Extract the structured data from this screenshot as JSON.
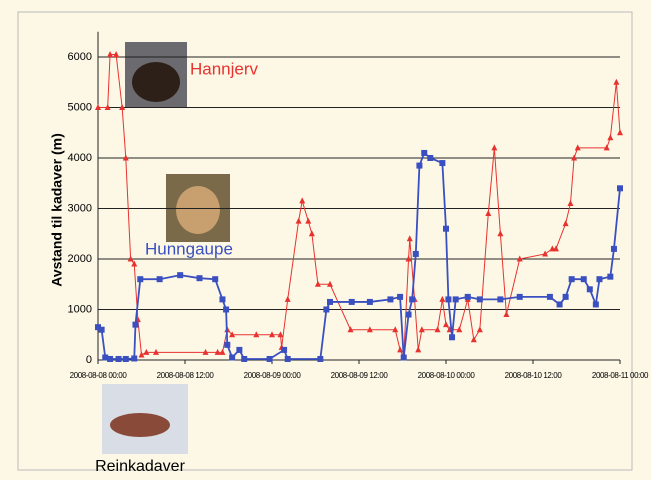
{
  "chart_data": {
    "type": "line",
    "ylabel": "Avstand til kadaver (m)",
    "xlim": [
      "2008-08-08 00:00",
      "2008-08-11 00:00"
    ],
    "xticks": [
      "2008-08-08 00:00",
      "2008-08-08 12:00",
      "2008-08-09 00:00",
      "2008-08-09 12:00",
      "2008-08-10 00:00",
      "2008-08-10 12:00",
      "2008-08-11 00:00"
    ],
    "ylim": [
      0,
      6500
    ],
    "yticks": [
      0,
      1000,
      2000,
      3000,
      4000,
      5000,
      6000
    ],
    "grid": true,
    "annotations": [
      "Reinkadaver"
    ],
    "series": [
      {
        "name": "Hannjerv",
        "color": "#e8322f",
        "marker": "triangle",
        "x": [
          "2008-08-08 00:00",
          "2008-08-08 01:20",
          "2008-08-08 01:40",
          "2008-08-08 02:30",
          "2008-08-08 03:20",
          "2008-08-08 03:50",
          "2008-08-08 04:30",
          "2008-08-08 05:00",
          "2008-08-08 05:30",
          "2008-08-08 06:00",
          "2008-08-08 06:40",
          "2008-08-08 08:00",
          "2008-08-08 14:50",
          "2008-08-08 16:30",
          "2008-08-08 17:10",
          "2008-08-08 17:50",
          "2008-08-08 18:30",
          "2008-08-08 21:50",
          "2008-08-09 00:00",
          "2008-08-09 01:10",
          "2008-08-09 01:20",
          "2008-08-09 02:10",
          "2008-08-09 03:40",
          "2008-08-09 04:10",
          "2008-08-09 05:00",
          "2008-08-09 05:30",
          "2008-08-09 06:20",
          "2008-08-09 08:00",
          "2008-08-09 10:50",
          "2008-08-09 13:30",
          "2008-08-09 17:00",
          "2008-08-09 17:40",
          "2008-08-09 18:10",
          "2008-08-09 18:50",
          "2008-08-09 19:00",
          "2008-08-09 19:40",
          "2008-08-09 20:10",
          "2008-08-09 20:40",
          "2008-08-09 22:50",
          "2008-08-09 23:30",
          "2008-08-10 00:00",
          "2008-08-10 00:30",
          "2008-08-10 01:50",
          "2008-08-10 03:00",
          "2008-08-10 03:50",
          "2008-08-10 04:40",
          "2008-08-10 05:50",
          "2008-08-10 06:40",
          "2008-08-10 07:30",
          "2008-08-10 08:20",
          "2008-08-10 10:10",
          "2008-08-10 13:40",
          "2008-08-10 14:40",
          "2008-08-10 15:10",
          "2008-08-10 16:30",
          "2008-08-10 17:10",
          "2008-08-10 17:40",
          "2008-08-10 18:10",
          "2008-08-10 22:10",
          "2008-08-10 22:40",
          "2008-08-10 23:30",
          "2008-08-11 00:00"
        ],
        "values": [
          5000,
          5000,
          6050,
          6050,
          5000,
          4000,
          2000,
          1900,
          800,
          100,
          150,
          150,
          150,
          150,
          150,
          600,
          500,
          500,
          500,
          500,
          250,
          1200,
          2750,
          3150,
          2750,
          2500,
          1500,
          1500,
          600,
          600,
          600,
          200,
          50,
          2000,
          2400,
          1200,
          200,
          600,
          600,
          1200,
          700,
          600,
          600,
          1200,
          400,
          600,
          2900,
          4200,
          2500,
          900,
          2000,
          2100,
          2200,
          2200,
          2700,
          3100,
          4000,
          4200,
          4200,
          4400,
          5500,
          4500
        ]
      },
      {
        "name": "Hunngaupe",
        "color": "#3a4fc0",
        "marker": "square",
        "x": [
          "2008-08-08 00:00",
          "2008-08-08 00:30",
          "2008-08-08 01:00",
          "2008-08-08 01:40",
          "2008-08-08 02:50",
          "2008-08-08 03:50",
          "2008-08-08 05:00",
          "2008-08-08 05:10",
          "2008-08-08 05:50",
          "2008-08-08 08:30",
          "2008-08-08 11:20",
          "2008-08-08 14:00",
          "2008-08-08 16:10",
          "2008-08-08 17:10",
          "2008-08-08 17:40",
          "2008-08-08 17:50",
          "2008-08-08 18:30",
          "2008-08-08 19:30",
          "2008-08-08 20:10",
          "2008-08-08 23:40",
          "2008-08-09 01:40",
          "2008-08-09 02:10",
          "2008-08-09 06:40",
          "2008-08-09 07:30",
          "2008-08-09 08:00",
          "2008-08-09 11:00",
          "2008-08-09 13:30",
          "2008-08-09 16:20",
          "2008-08-09 17:40",
          "2008-08-09 18:10",
          "2008-08-09 18:50",
          "2008-08-09 19:20",
          "2008-08-09 19:50",
          "2008-08-09 20:20",
          "2008-08-09 21:00",
          "2008-08-09 21:50",
          "2008-08-09 23:30",
          "2008-08-10 00:00",
          "2008-08-10 00:20",
          "2008-08-10 00:50",
          "2008-08-10 01:20",
          "2008-08-10 03:00",
          "2008-08-10 04:40",
          "2008-08-10 07:30",
          "2008-08-10 10:10",
          "2008-08-10 14:20",
          "2008-08-10 15:40",
          "2008-08-10 16:30",
          "2008-08-10 17:20",
          "2008-08-10 19:00",
          "2008-08-10 19:50",
          "2008-08-10 20:40",
          "2008-08-10 21:10",
          "2008-08-10 22:40",
          "2008-08-10 23:10",
          "2008-08-11 00:00"
        ],
        "values": [
          650,
          600,
          50,
          20,
          20,
          20,
          30,
          700,
          1600,
          1600,
          1680,
          1620,
          1600,
          1200,
          1000,
          300,
          50,
          200,
          20,
          20,
          200,
          20,
          20,
          1000,
          1150,
          1150,
          1150,
          1200,
          1250,
          50,
          900,
          1200,
          2100,
          3850,
          4100,
          4000,
          3900,
          2600,
          1200,
          450,
          1200,
          1250,
          1200,
          1200,
          1250,
          1250,
          1100,
          1250,
          1600,
          1600,
          1400,
          1100,
          1600,
          1650,
          2200,
          3400
        ]
      }
    ]
  }
}
